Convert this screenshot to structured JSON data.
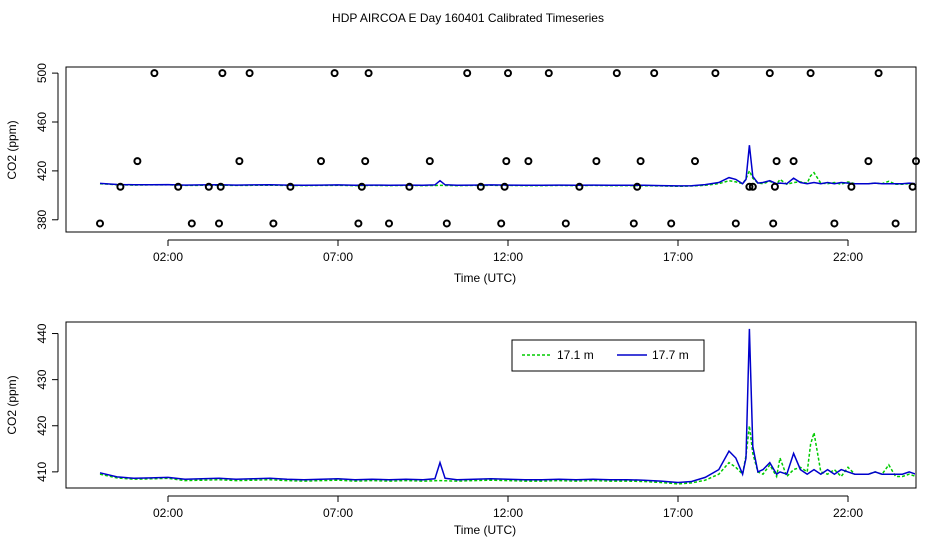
{
  "title": "HDP AIRCOA E  Day 160401  Calibrated Timeseries",
  "colors": {
    "s171": "#00cc00",
    "s177": "#0000cc",
    "frame": "#000000",
    "points": "#000000"
  },
  "chart_data": [
    {
      "type": "line",
      "panel": "top",
      "xlabel": "Time (UTC)",
      "ylabel": "CO2 (ppm)",
      "xlim": [
        -1.0,
        24.0
      ],
      "ylim": [
        370,
        505
      ],
      "x_ticks": [
        2,
        7,
        12,
        17,
        22
      ],
      "x_tick_labels": [
        "02:00",
        "07:00",
        "12:00",
        "17:00",
        "22:00"
      ],
      "y_ticks": [
        380,
        420,
        460,
        500
      ],
      "y_tick_labels": [
        "380",
        "420",
        "460",
        "500"
      ],
      "legend": null,
      "series": [
        {
          "name": "17.1 m",
          "color": "#00cc00",
          "dash": "3,2",
          "x": [
            0.0,
            0.5,
            1.0,
            1.5,
            2.0,
            2.5,
            3.0,
            3.5,
            4.0,
            4.5,
            5.0,
            5.5,
            6.0,
            6.5,
            7.0,
            7.5,
            8.0,
            8.5,
            9.0,
            9.5,
            10.0,
            10.5,
            11.0,
            11.5,
            12.0,
            12.5,
            13.0,
            13.5,
            14.0,
            14.5,
            15.0,
            15.5,
            16.0,
            16.5,
            17.0,
            17.4,
            17.8,
            18.2,
            18.5,
            18.7,
            18.9,
            19.0,
            19.1,
            19.2,
            19.35,
            19.5,
            19.7,
            19.9,
            20.0,
            20.2,
            20.4,
            20.6,
            20.8,
            20.9,
            21.0,
            21.2,
            21.4,
            21.6,
            21.8,
            22.0,
            22.2,
            22.4,
            22.6,
            22.8,
            23.0,
            23.2,
            23.4,
            23.6,
            23.8,
            24.0
          ],
          "y": [
            409.5,
            408.7,
            408.4,
            408.5,
            408.6,
            408.1,
            408.2,
            408.3,
            408.1,
            408.2,
            408.3,
            408.1,
            408.0,
            408.1,
            408.2,
            408.0,
            408.1,
            408.0,
            408.1,
            408.0,
            408.1,
            408.0,
            408.1,
            408.2,
            408.1,
            408.0,
            408.0,
            408.1,
            408.0,
            408.1,
            408.0,
            408.0,
            407.9,
            407.7,
            407.4,
            407.6,
            408.2,
            409.5,
            412.0,
            411.0,
            409.5,
            413.5,
            420.0,
            414.0,
            410.0,
            409.5,
            411.5,
            409.0,
            413.0,
            409.0,
            410.5,
            411.0,
            410.0,
            416.0,
            418.5,
            410.0,
            409.5,
            410.5,
            409.0,
            411.0,
            409.5,
            409.5,
            409.5,
            410.0,
            409.5,
            411.5,
            409.0,
            409.0,
            409.5,
            409.0
          ]
        },
        {
          "name": "17.7 m",
          "color": "#0000cc",
          "dash": "",
          "x": [
            0.0,
            0.5,
            1.0,
            1.5,
            2.0,
            2.5,
            3.0,
            3.5,
            4.0,
            4.5,
            5.0,
            5.5,
            6.0,
            6.5,
            7.0,
            7.5,
            8.0,
            8.5,
            9.0,
            9.5,
            9.85,
            10.0,
            10.15,
            10.5,
            11.0,
            11.5,
            12.0,
            12.5,
            13.0,
            13.5,
            14.0,
            14.5,
            15.0,
            15.5,
            16.0,
            16.5,
            17.0,
            17.4,
            17.8,
            18.2,
            18.5,
            18.7,
            18.9,
            19.0,
            19.1,
            19.2,
            19.35,
            19.5,
            19.7,
            19.9,
            20.0,
            20.2,
            20.4,
            20.6,
            20.8,
            20.9,
            21.0,
            21.2,
            21.4,
            21.6,
            21.8,
            22.0,
            22.2,
            22.4,
            22.6,
            22.8,
            23.0,
            23.2,
            23.4,
            23.6,
            23.8,
            24.0
          ],
          "y": [
            409.8,
            408.9,
            408.6,
            408.7,
            408.8,
            408.4,
            408.5,
            408.6,
            408.4,
            408.5,
            408.6,
            408.4,
            408.3,
            408.4,
            408.5,
            408.3,
            408.4,
            408.3,
            408.4,
            408.3,
            408.5,
            412.0,
            408.6,
            408.3,
            408.4,
            408.5,
            408.4,
            408.3,
            408.3,
            408.4,
            408.3,
            408.4,
            408.3,
            408.3,
            408.2,
            408.0,
            407.7,
            407.9,
            408.8,
            410.5,
            414.5,
            413.0,
            409.5,
            413.0,
            441.0,
            415.5,
            410.0,
            410.5,
            412.0,
            409.5,
            410.0,
            409.5,
            414.0,
            410.5,
            409.5,
            410.0,
            410.5,
            409.5,
            410.5,
            409.5,
            410.5,
            410.0,
            409.5,
            409.5,
            409.5,
            410.0,
            409.5,
            409.5,
            409.5,
            409.5,
            410.0,
            409.5
          ]
        }
      ],
      "points": {
        "x": [
          0.0,
          0.6,
          1.1,
          1.6,
          2.3,
          2.7,
          3.2,
          3.5,
          3.55,
          3.6,
          4.1,
          4.4,
          5.1,
          5.6,
          6.5,
          6.9,
          7.6,
          7.7,
          7.8,
          7.9,
          8.5,
          9.1,
          9.7,
          10.2,
          10.8,
          11.2,
          11.8,
          11.9,
          11.95,
          12.0,
          12.6,
          13.2,
          13.7,
          14.1,
          14.6,
          15.2,
          15.7,
          15.8,
          15.9,
          16.3,
          16.8,
          17.5,
          18.1,
          18.7,
          19.1,
          19.2,
          19.7,
          19.8,
          19.85,
          19.9,
          20.4,
          20.9,
          21.6,
          22.1,
          22.6,
          22.9,
          23.4,
          23.9,
          24.0
        ],
        "y": [
          377,
          407,
          428,
          500,
          407,
          377,
          407,
          377,
          407,
          500,
          428,
          500,
          377,
          407,
          428,
          500,
          377,
          407,
          428,
          500,
          377,
          407,
          428,
          377,
          500,
          407,
          377,
          407,
          428,
          500,
          428,
          500,
          377,
          407,
          428,
          500,
          377,
          407,
          428,
          500,
          377,
          428,
          500,
          377,
          407,
          407,
          500,
          377,
          407,
          428,
          428,
          500,
          377,
          407,
          428,
          500,
          377,
          407,
          428
        ]
      }
    },
    {
      "type": "line",
      "panel": "bottom",
      "xlabel": "Time (UTC)",
      "ylabel": "CO2 (ppm)",
      "xlim": [
        -1.0,
        24.0
      ],
      "ylim": [
        406.5,
        442.5
      ],
      "x_ticks": [
        2,
        7,
        12,
        17,
        22
      ],
      "x_tick_labels": [
        "02:00",
        "07:00",
        "12:00",
        "17:00",
        "22:00"
      ],
      "y_ticks": [
        410,
        420,
        430,
        440
      ],
      "y_tick_labels": [
        "410",
        "420",
        "430",
        "440"
      ],
      "legend": {
        "position": "top-right",
        "entries": [
          "17.1 m",
          "17.7 m"
        ]
      },
      "series_ref": "same as top panel series"
    }
  ]
}
